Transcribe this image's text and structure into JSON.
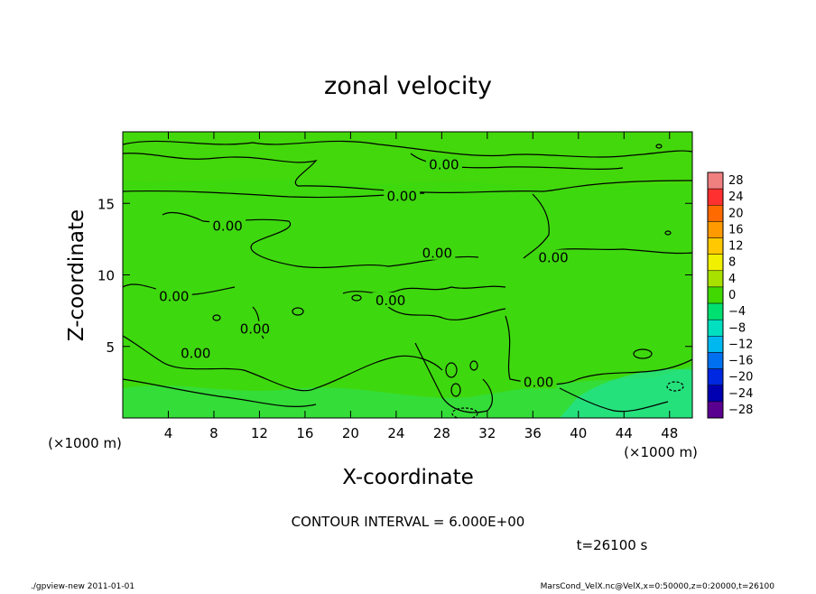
{
  "chart_data": {
    "type": "heatmap",
    "title": "zonal velocity",
    "xlabel": "X-coordinate",
    "ylabel": "Z-coordinate",
    "x_unit": "(×1000 m)",
    "y_unit": "(×1000 m)",
    "xlim": [
      0,
      50
    ],
    "ylim": [
      0,
      20
    ],
    "x_ticks": [
      4,
      8,
      12,
      16,
      20,
      24,
      28,
      32,
      36,
      40,
      44,
      48
    ],
    "y_ticks": [
      5,
      10,
      15
    ],
    "colorbar": {
      "levels": [
        28,
        24,
        20,
        16,
        12,
        8,
        4,
        0,
        -4,
        -8,
        -12,
        -16,
        -20,
        -24,
        -28
      ],
      "colors": [
        "#f08080",
        "#ff3030",
        "#ff6a00",
        "#ff9a00",
        "#ffc800",
        "#f0f000",
        "#a8e000",
        "#40d800",
        "#00e070",
        "#00e0c0",
        "#00b8f0",
        "#0070f0",
        "#0028e0",
        "#0000b0",
        "#5a0090"
      ]
    },
    "contour_labels": [
      {
        "text": "0.00",
        "x": 28.2,
        "z": 17.7
      },
      {
        "text": "0.00",
        "x": 24.5,
        "z": 15.5
      },
      {
        "text": "0.00",
        "x": 9.2,
        "z": 13.4
      },
      {
        "text": "0.00",
        "x": 27.6,
        "z": 11.5
      },
      {
        "text": "0.00",
        "x": 37.8,
        "z": 11.2
      },
      {
        "text": "0.00",
        "x": 4.5,
        "z": 8.5
      },
      {
        "text": "0.00",
        "x": 23.5,
        "z": 8.2
      },
      {
        "text": "0.00",
        "x": 11.6,
        "z": 6.2
      },
      {
        "text": "0.00",
        "x": 6.4,
        "z": 4.5
      },
      {
        "text": "0.00",
        "x": 36.5,
        "z": 2.5
      }
    ],
    "contour_interval_text": "CONTOUR INTERVAL = 6.000E+00",
    "time_text": "t=26100 s"
  },
  "footer": {
    "left": "./gpview-new  2011-01-01",
    "right": "MarsCond_VelX.nc@VelX,x=0:50000,z=0:20000,t=26100"
  },
  "colors": {
    "field_base": "#3ed80e",
    "contour": "#000000"
  }
}
